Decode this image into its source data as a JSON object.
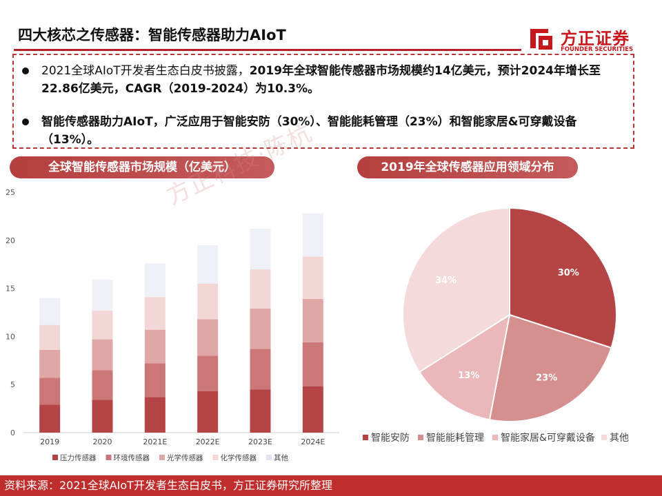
{
  "header": {
    "title": "四大核芯之传感器：智能传感器助力AIoT",
    "logo_cn": "方正证券",
    "logo_en": "FOUNDER SECURITIES"
  },
  "summary": {
    "bullet1_plain": "2021全球AIoT开发者生态白皮书披露，",
    "bullet1_bold": "2019年全球智能传感器市场规模约14亿美元，预计2024年增长至22.86亿美元，CAGR（2019-2024）为10.3%。",
    "bullet2_bold": "智能传感器助力AIoT，广泛应用于智能安防（30%）、智能能耗管理（23%）和智能家居&可穿戴设备（13%）。"
  },
  "banners": {
    "left": "全球智能传感器市场规模（亿美元）",
    "right": "2019年全球传感器应用领域分布"
  },
  "watermark": "方正科技·陈杭",
  "colors": {
    "accent": "#b5202a",
    "banner": "#b94a4a",
    "footer": "#bf2d2d"
  },
  "chart_data": [
    {
      "type": "bar",
      "stacked": true,
      "categories": [
        "2019",
        "2020",
        "2021E",
        "2022E",
        "2023E",
        "2024E"
      ],
      "series": [
        {
          "name": "压力传感器",
          "color": "#b54545",
          "values": [
            2.9,
            3.4,
            3.7,
            4.3,
            4.5,
            4.8
          ]
        },
        {
          "name": "环境传感器",
          "color": "#cc7777",
          "values": [
            2.8,
            3.1,
            3.5,
            3.7,
            4.2,
            4.6
          ]
        },
        {
          "name": "光学传感器",
          "color": "#e0a7a7",
          "values": [
            2.9,
            3.2,
            3.5,
            3.8,
            4.2,
            4.5
          ]
        },
        {
          "name": "化学传感器",
          "color": "#f3d7d7",
          "values": [
            2.6,
            3.0,
            3.4,
            3.7,
            4.1,
            4.4
          ]
        },
        {
          "name": "其他",
          "color": "#eef2f8",
          "values": [
            2.8,
            3.2,
            3.5,
            4.0,
            4.2,
            4.5
          ]
        }
      ],
      "yticks": [
        "0",
        "5",
        "10",
        "15",
        "20",
        "25"
      ],
      "ylim": [
        0,
        25
      ],
      "legend": "bottom"
    },
    {
      "type": "pie",
      "labels": [
        "智能安防",
        "智能能耗管理",
        "智能家居&可穿戴设备",
        "其他"
      ],
      "values": [
        30,
        23,
        13,
        34
      ],
      "value_labels": [
        "30%",
        "23%",
        "13%",
        "34%"
      ],
      "colors": [
        "#b54545",
        "#d68f8f",
        "#eab8b8",
        "#f4dada"
      ],
      "legend": "bottom"
    }
  ],
  "footer": {
    "source": "资料来源：2021全球AIoT开发者生态白皮书，方正证券研究所整理"
  }
}
